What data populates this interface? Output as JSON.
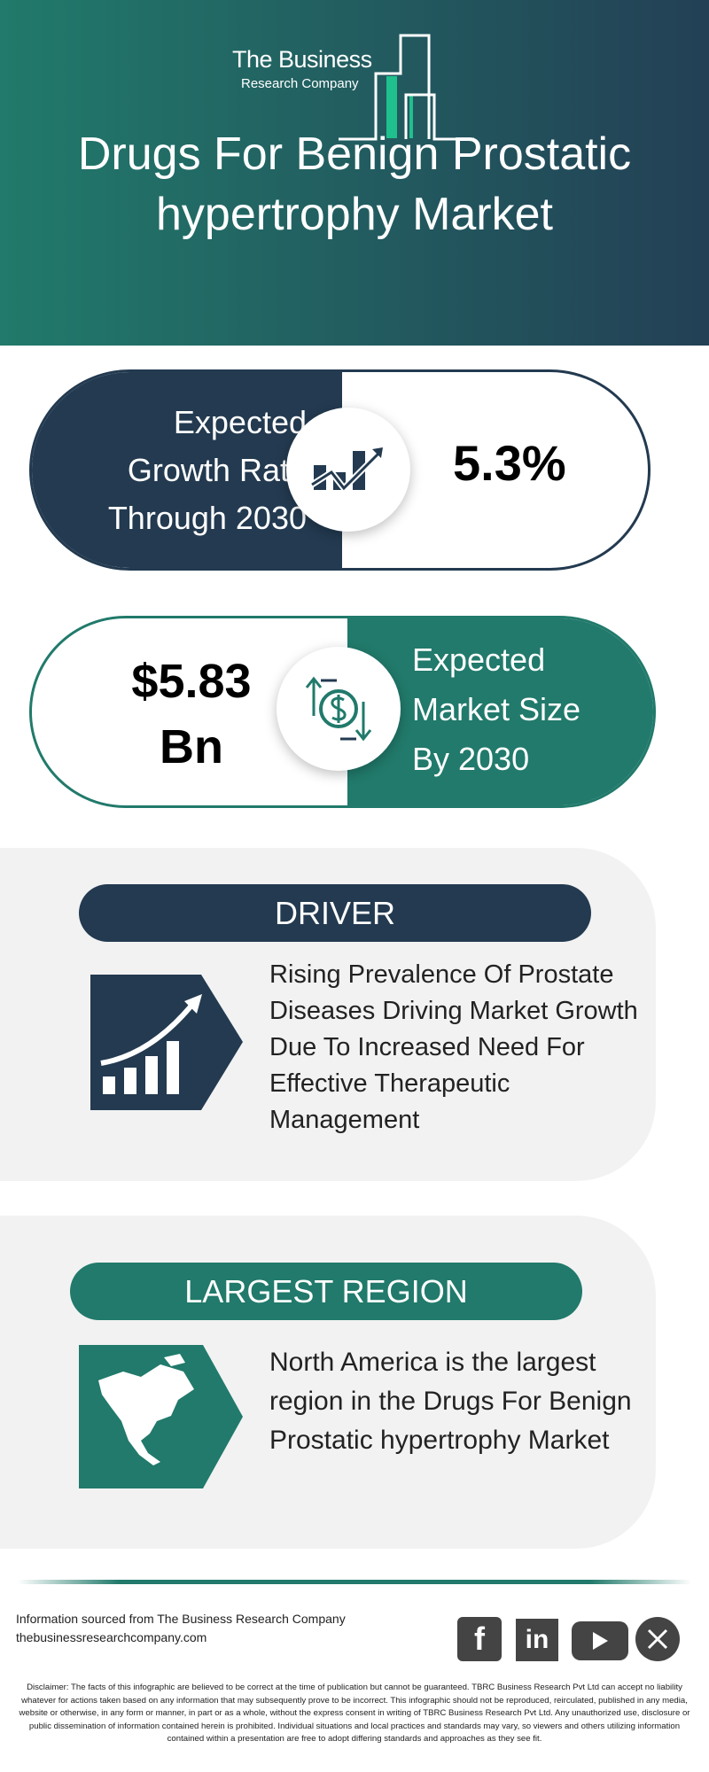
{
  "brand": {
    "line1": "The Business",
    "line2": "Research Company"
  },
  "title": {
    "line1": "Drugs For Benign Prostatic",
    "line2": "hypertrophy Market"
  },
  "growth": {
    "label_lines": [
      "Expected",
      "Growth Rate",
      "Through 2030"
    ],
    "value": "5.3%",
    "icon": "growth-chart-icon"
  },
  "market_size": {
    "value_lines": [
      "$5.83",
      "Bn"
    ],
    "label_lines": [
      "Expected",
      "Market Size",
      "By 2030"
    ],
    "icon": "dollar-exchange-icon"
  },
  "driver": {
    "heading": "DRIVER",
    "text": "Rising Prevalence Of Prostate Diseases Driving Market Growth Due To Increased Need For Effective Therapeutic Management",
    "icon": "rising-bar-chart-icon"
  },
  "region": {
    "heading": "LARGEST REGION",
    "text": "North America is the largest region in the Drugs For Benign Prostatic hypertrophy Market",
    "icon": "north-america-map-icon"
  },
  "footer": {
    "source": "Information sourced from The Business Research Company",
    "url": "thebusinessresearchcompany.com",
    "social": [
      "facebook",
      "linkedin",
      "youtube",
      "x"
    ],
    "disclaimer": "Disclaimer: The facts of this infographic are believed to be correct at the time of publication but cannot be guaranteed. TBRC Business Research Pvt Ltd can accept no liability whatever for actions taken based on any information that may subsequently prove to be incorrect. This infographic should not be reproduced, reirculated, published in any media, website or otherwise, in any form or manner, in part or as a whole, without the express consent in writing of TBRC Business Research Pvt Ltd. Any unauthorized use, disclosure or public dissemination of information contained herein is prohibited. Individual situations and local practices and standards may vary, so viewers and others utilizing information contained within a presentation are free to adopt differing standards and approaches as they see fit."
  },
  "colors": {
    "navy": "#233a50",
    "teal": "#217a6b",
    "panel": "#f2f2f2"
  }
}
